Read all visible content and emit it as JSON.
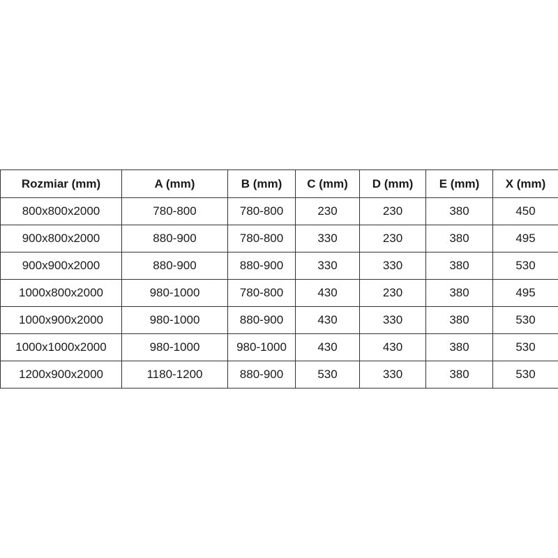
{
  "table": {
    "headers": [
      "Rozmiar (mm)",
      "A (mm)",
      "B (mm)",
      "C (mm)",
      "D (mm)",
      "E (mm)",
      "X (mm)"
    ],
    "rows": [
      [
        "800x800x2000",
        "780-800",
        "780-800",
        "230",
        "230",
        "380",
        "450"
      ],
      [
        "900x800x2000",
        "880-900",
        "780-800",
        "330",
        "230",
        "380",
        "495"
      ],
      [
        "900x900x2000",
        "880-900",
        "880-900",
        "330",
        "330",
        "380",
        "530"
      ],
      [
        "1000x800x2000",
        "980-1000",
        "780-800",
        "430",
        "230",
        "380",
        "495"
      ],
      [
        "1000x900x2000",
        "980-1000",
        "880-900",
        "430",
        "330",
        "380",
        "530"
      ],
      [
        "1000x1000x2000",
        "980-1000",
        "980-1000",
        "430",
        "430",
        "380",
        "530"
      ],
      [
        "1200x900x2000",
        "1180-1200",
        "880-900",
        "530",
        "330",
        "380",
        "530"
      ]
    ]
  }
}
